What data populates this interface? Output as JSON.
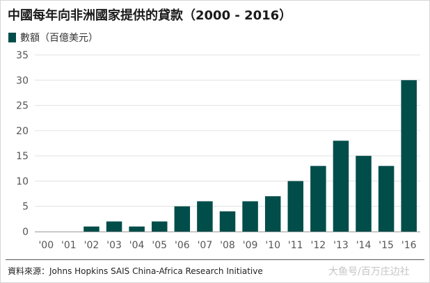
{
  "page": {
    "title": "中國每年向非洲國家提供的貸款（2000 - 2016）",
    "legend_label": "數額（百億美元）",
    "source": "資料來源：Johns Hopkins SAIS China-Africa Research Initiative",
    "watermark": "大鱼号/百万庄边社"
  },
  "colors": {
    "bar": "#004d4a",
    "grid": "#e0e0e0",
    "axis": "#999999"
  },
  "chart_data": {
    "type": "bar",
    "title": "中國每年向非洲國家提供的貸款（2000 - 2016）",
    "xlabel": "",
    "ylabel": "",
    "ylim": [
      0,
      35
    ],
    "yticks": [
      0,
      5,
      10,
      15,
      20,
      25,
      30,
      35
    ],
    "categories": [
      "'00",
      "'01",
      "'02",
      "'03",
      "'04",
      "'05",
      "'06",
      "'07",
      "'08",
      "'09",
      "'10",
      "'11",
      "'12",
      "'13",
      "'14",
      "'15",
      "'16"
    ],
    "series": [
      {
        "name": "數額（百億美元）",
        "values": [
          0,
          0,
          1,
          2,
          1,
          2,
          5,
          6,
          4,
          6,
          7,
          10,
          13,
          18,
          15,
          13,
          30
        ]
      }
    ]
  }
}
